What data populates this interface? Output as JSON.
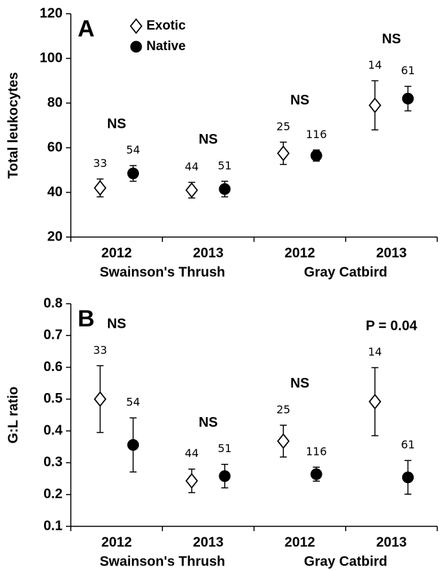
{
  "chart_data": [
    {
      "type": "errorbar",
      "panel_label": "A",
      "y_label": "Total leukocytes",
      "categories": [
        "2012",
        "2013",
        "2012",
        "2013"
      ],
      "groups": [
        "Swainson's Thrush",
        "Gray Catbird"
      ],
      "ylim": [
        20,
        120
      ],
      "yticks": [
        20,
        40,
        60,
        80,
        100,
        120
      ],
      "legend": true,
      "series": [
        {
          "name": "Exotic",
          "marker": "diamond",
          "color": "#ffffff",
          "values": [
            42,
            41,
            57.5,
            79
          ],
          "errors": [
            4,
            3.5,
            5,
            11
          ],
          "n": [
            33,
            44,
            25,
            14
          ]
        },
        {
          "name": "Native",
          "marker": "circle",
          "color": "#000000",
          "values": [
            48.5,
            41.5,
            56.5,
            82
          ],
          "errors": [
            3.5,
            3.5,
            2.5,
            5.5
          ],
          "n": [
            54,
            51,
            116,
            61
          ]
        }
      ],
      "annotations": [
        "NS",
        "NS",
        "NS",
        "NS"
      ]
    },
    {
      "type": "errorbar",
      "panel_label": "B",
      "y_label": "G:L ratio",
      "categories": [
        "2012",
        "2013",
        "2012",
        "2013"
      ],
      "groups": [
        "Swainson's Thrush",
        "Gray Catbird"
      ],
      "ylim": [
        0.1,
        0.8
      ],
      "yticks": [
        0.1,
        0.2,
        0.3,
        0.4,
        0.5,
        0.6,
        0.7,
        0.8
      ],
      "legend": false,
      "series": [
        {
          "name": "Exotic",
          "marker": "diamond",
          "color": "#ffffff",
          "values": [
            0.5,
            0.243,
            0.368,
            0.492
          ],
          "errors": [
            0.105,
            0.037,
            0.05,
            0.107
          ],
          "n": [
            33,
            44,
            25,
            14
          ]
        },
        {
          "name": "Native",
          "marker": "circle",
          "color": "#000000",
          "values": [
            0.356,
            0.258,
            0.264,
            0.254
          ],
          "errors": [
            0.085,
            0.037,
            0.022,
            0.053
          ],
          "n": [
            54,
            51,
            116,
            61
          ]
        }
      ],
      "annotations": [
        "NS",
        "NS",
        "NS",
        "P = 0.04"
      ]
    }
  ]
}
